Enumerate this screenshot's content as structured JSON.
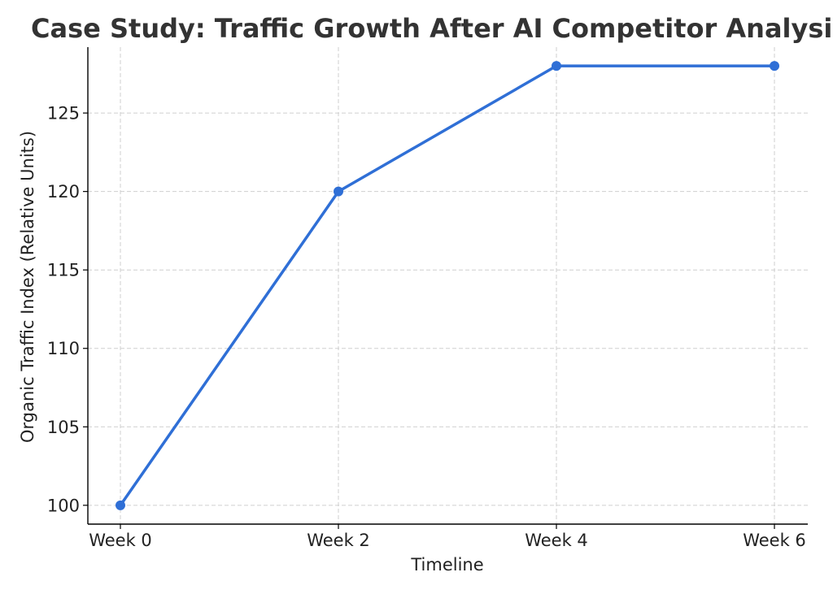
{
  "chart_data": {
    "type": "line",
    "title": "Case Study: Traffic Growth After AI Competitor Analysis",
    "xlabel": "Timeline",
    "ylabel": "Organic Traffic Index (Relative Units)",
    "categories": [
      "Week 0",
      "Week 2",
      "Week 4",
      "Week 6"
    ],
    "series": [
      {
        "values": [
          100,
          120,
          128,
          128
        ],
        "color": "#2f6fd6"
      }
    ],
    "ylim": [
      98.8,
      129.2
    ],
    "yticks": [
      100,
      105,
      110,
      115,
      120,
      125
    ],
    "grid": true,
    "legend": "none",
    "marker": "circle"
  }
}
